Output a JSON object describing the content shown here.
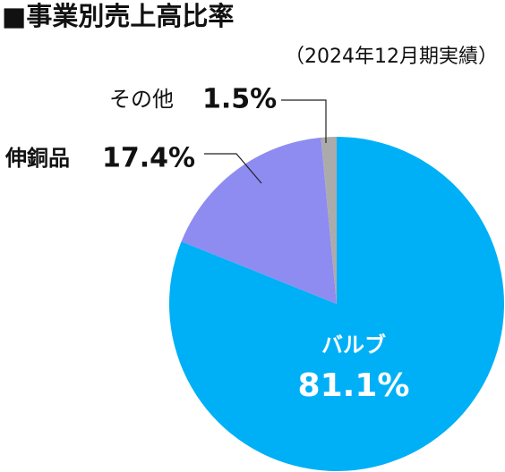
{
  "chart_data": {
    "type": "pie",
    "title": "■事業別売上高比率",
    "subtitle": "（2024年12月期実績）",
    "categories": [
      "バルブ",
      "伸銅品",
      "その他"
    ],
    "values": [
      81.1,
      17.4,
      1.5
    ],
    "value_labels": [
      "81.1%",
      "17.4%",
      "1.5%"
    ],
    "colors": [
      "#00b0f7",
      "#8e8cf0",
      "#ababab"
    ]
  }
}
